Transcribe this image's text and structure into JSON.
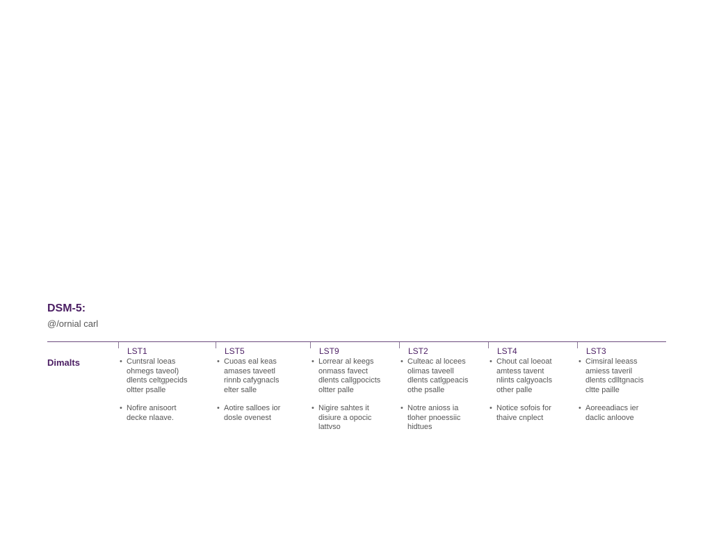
{
  "header": {
    "title": "DSM-5:",
    "subtitle": "@/ornial carl"
  },
  "table": {
    "row_label": "Dimalts",
    "columns": [
      {
        "header": "LST1",
        "bullets": [
          [
            "Cuntsral loeas",
            "ohmegs taveol)",
            "dlents celtgpecids",
            "oltter psalle"
          ],
          [
            "Nofire anisoort",
            "decke nlaave."
          ]
        ]
      },
      {
        "header": "LST5",
        "bullets": [
          [
            "Cuoas eal keas",
            "amases taveetl",
            "rinnb cafygnacls",
            "elter salle"
          ],
          [
            "Aotire salloes ior",
            "dosle ovenest"
          ]
        ]
      },
      {
        "header": "LST9",
        "bullets": [
          [
            "Lorrear al keegs",
            "onmass favect",
            "dlents callgpocicts",
            "oltter palle"
          ],
          [
            "Nigire sahtes it",
            "disiure a opocic",
            "lattvso"
          ]
        ]
      },
      {
        "header": "LST2",
        "bullets": [
          [
            "Culteac al locees",
            "olimas taveell",
            "dlents catlgpeacis",
            "othe psalle"
          ],
          [
            "Notre anioss ia",
            "tloher pnoessiic",
            "hidtues"
          ]
        ]
      },
      {
        "header": "LST4",
        "bullets": [
          [
            "Chout cal loeoat",
            "amtess tavent",
            "nlints calgyoacls",
            "other palle"
          ],
          [
            "Notice sofois for",
            "thaive cnplect"
          ]
        ]
      },
      {
        "header": "LST3",
        "bullets": [
          [
            "Cimsiral leeass",
            "amiess taveril",
            "dlents cdlltgnacis",
            "cltte paille"
          ],
          [
            "Aoreeadiacs ier",
            "daclic anloove"
          ]
        ]
      }
    ]
  }
}
